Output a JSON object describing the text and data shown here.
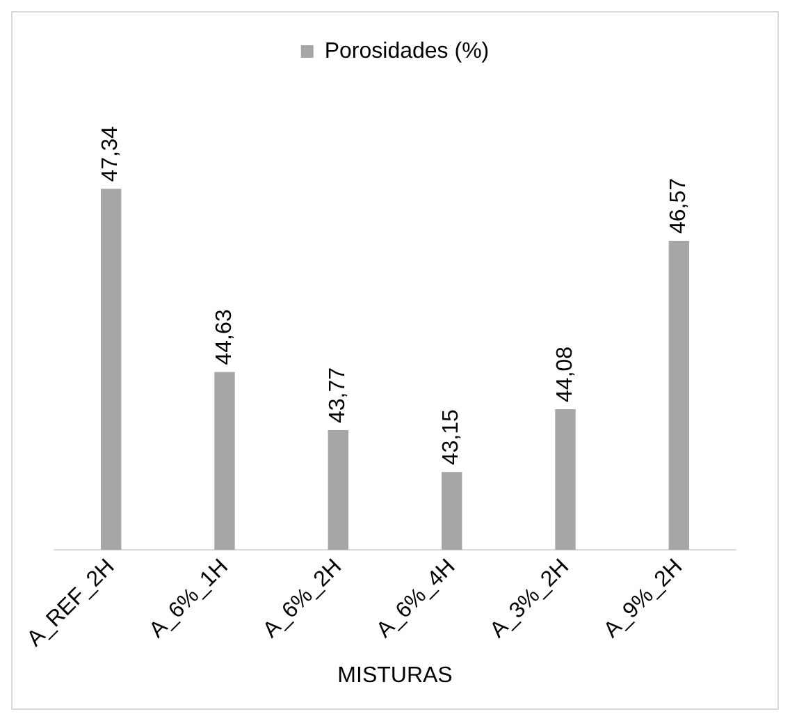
{
  "chart_data": {
    "type": "bar",
    "xlabel": "MISTURAS",
    "categories": [
      "A_REF_2H",
      "A_6%_1H",
      "A_6%_2H",
      "A_6%_4H",
      "A_3%_2H",
      "A_9%_2H"
    ],
    "series": [
      {
        "name": "Porosidades (%)",
        "color": "#a6a6a6",
        "values": [
          47.34,
          44.63,
          43.77,
          43.15,
          44.08,
          46.57
        ],
        "value_labels": [
          "47,34",
          "44,63",
          "43,77",
          "43,15",
          "44,08",
          "46,57"
        ]
      }
    ],
    "legend": "top"
  }
}
